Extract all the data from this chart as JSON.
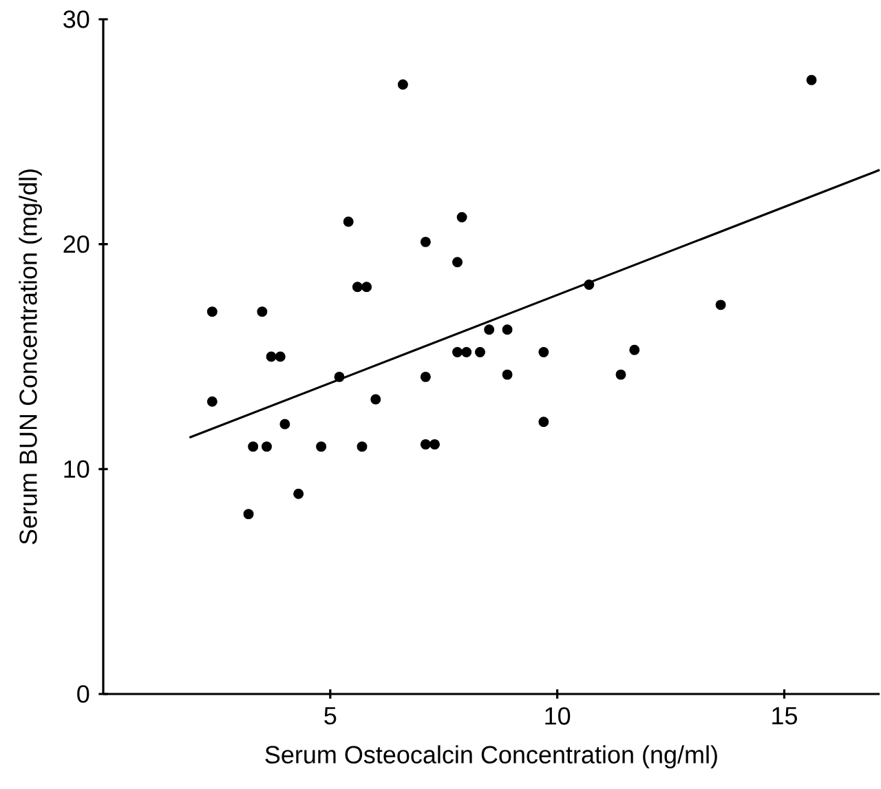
{
  "chart_data": {
    "type": "scatter",
    "xlabel": "Serum Osteocalcin Concentration  (ng/ml)",
    "ylabel": "Serum BUN Concentration  (mg/dl)",
    "xlim": [
      0,
      17.1
    ],
    "ylim": [
      0,
      30
    ],
    "xticks": [
      5,
      10,
      15
    ],
    "yticks": [
      0,
      10,
      20,
      30
    ],
    "marker": "circle",
    "series": [
      {
        "color": "#000000",
        "x": [
          2.4,
          2.4,
          3.5,
          3.7,
          3.9,
          3.3,
          3.6,
          4.0,
          3.2,
          4.3,
          4.8,
          5.2,
          5.4,
          5.6,
          5.8,
          5.7,
          6.0,
          7.1,
          7.1,
          7.1,
          7.3,
          6.6,
          15.6,
          7.9,
          7.8,
          10.7,
          13.6,
          8.5,
          8.9,
          7.8,
          8.0,
          8.3,
          9.7,
          11.7,
          8.9,
          11.4,
          9.7
        ],
        "values": [
          17.0,
          13.0,
          17.0,
          15.0,
          15.0,
          11.0,
          11.0,
          12.0,
          8.0,
          8.9,
          11.0,
          14.1,
          21.0,
          18.1,
          18.1,
          11.0,
          13.1,
          20.1,
          14.1,
          11.1,
          11.1,
          27.1,
          27.3,
          21.2,
          19.2,
          18.2,
          17.3,
          16.2,
          16.2,
          15.2,
          15.2,
          15.2,
          15.2,
          15.3,
          14.2,
          14.2,
          12.1
        ]
      },
      {
        "type": "line",
        "color": "#000000",
        "marker": "none",
        "x": [
          1.9,
          17.1
        ],
        "values": [
          11.4,
          23.3
        ]
      }
    ]
  }
}
